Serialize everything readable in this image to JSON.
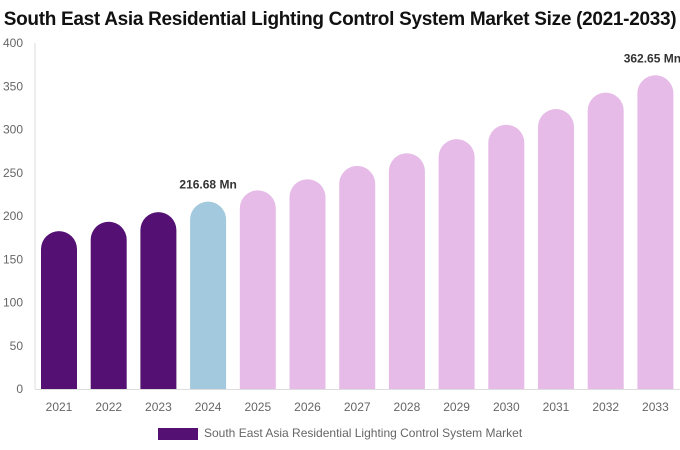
{
  "chart_data": {
    "type": "bar",
    "title": "South East Asia Residential Lighting Control System Market Size (2021-2033)",
    "xlabel": "",
    "ylabel": "",
    "categories": [
      "2021",
      "2022",
      "2023",
      "2024",
      "2025",
      "2026",
      "2027",
      "2028",
      "2029",
      "2030",
      "2031",
      "2032",
      "2033"
    ],
    "series": [
      {
        "name": "South East Asia Residential Lighting Control System Market",
        "values": [
          182.5,
          193.4,
          204.5,
          216.68,
          229.7,
          242.5,
          257.9,
          272.6,
          288.9,
          305.5,
          323.7,
          342.6,
          362.65
        ]
      }
    ],
    "data_labels": [
      {
        "category": "2024",
        "text": "216.68 Mn"
      },
      {
        "category": "2033",
        "text": "362.65 Mn"
      }
    ],
    "ylim": [
      0,
      400
    ],
    "yticks": [
      0,
      50,
      100,
      150,
      200,
      250,
      300,
      350,
      400
    ],
    "grid": false,
    "legend_position": "bottom",
    "colors": {
      "historical": "#541173",
      "base_year": "#a3c9de",
      "forecast": "#e6bbe8"
    },
    "bar_color_groups": [
      "historical",
      "historical",
      "historical",
      "base_year",
      "forecast",
      "forecast",
      "forecast",
      "forecast",
      "forecast",
      "forecast",
      "forecast",
      "forecast",
      "forecast"
    ]
  }
}
